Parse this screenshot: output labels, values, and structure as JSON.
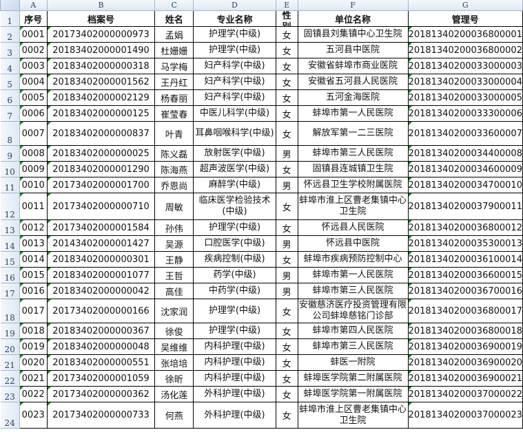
{
  "sheet": {
    "column_letters": [
      "A",
      "B",
      "C",
      "D",
      "E",
      "F",
      "G"
    ],
    "header": [
      "序号",
      "档案号",
      "姓名",
      "专业名称",
      "性别",
      "单位名称",
      "管理号"
    ],
    "row_numbers": [
      "1",
      "2",
      "3",
      "4",
      "5",
      "6",
      "7",
      "8",
      "9",
      "10",
      "11",
      "12",
      "13",
      "14",
      "15",
      "16",
      "17",
      "18",
      "19",
      "20",
      "21",
      "22",
      "23",
      "24"
    ],
    "rows": [
      [
        "0001",
        "20173402000000973",
        "孟娟",
        "护理学(中级)",
        "女",
        "固镇县刘集镇中心卫生院",
        "20181340200036800001"
      ],
      [
        "0002",
        "20183402000001490",
        "杜姗姗",
        "护理学(中级)",
        "女",
        "五河县中医院",
        "20181340200036800002"
      ],
      [
        "0003",
        "20183402000000318",
        "马学梅",
        "妇产科学(中级)",
        "女",
        "安徽省蚌埠市商业医院",
        "20181340200033000003"
      ],
      [
        "0004",
        "20183402000001562",
        "王丹红",
        "妇产科学(中级)",
        "女",
        "安徽省五河县人民医院",
        "20181340200033000004"
      ],
      [
        "0005",
        "20183402000002129",
        "杨春丽",
        "妇产科学(中级)",
        "女",
        "五河金海医院",
        "20181340200033000005"
      ],
      [
        "0006",
        "20183402000000125",
        "崔莹春",
        "中医儿科学(中级)",
        "女",
        "蚌埠市第一人民医院",
        "20181340200033300006"
      ],
      [
        "0007",
        "20183402000000837",
        "叶青",
        "耳鼻咽喉科学(中级)",
        "女",
        "解放军第一二三医院",
        "20181340200033600007"
      ],
      [
        "0008",
        "20183402000000025",
        "陈义磊",
        "放射医学(中级)",
        "男",
        "蚌埠市第三人民医院",
        "20181340200034400008"
      ],
      [
        "0009",
        "20183402000001290",
        "陈海燕",
        "超声波医学(中级)",
        "女",
        "固镇县连城镇卫生院",
        "20181340200034600009"
      ],
      [
        "0010",
        "20173402000001700",
        "乔恩尚",
        "麻醉学(中级)",
        "男",
        "怀远县卫生学校附属医院",
        "20181340200034700010"
      ],
      [
        "0011",
        "20173402000000710",
        "周敏",
        "临床医学检验技术(中级)",
        "女",
        "蚌埠市淮上区曹老集镇中心卫生院",
        "20181340200037900011"
      ],
      [
        "0012",
        "20173402000001584",
        "孙伟",
        "护理学(中级)",
        "女",
        "怀远县人民医院",
        "20181340200036800012"
      ],
      [
        "0013",
        "20143402000001427",
        "吴源",
        "口腔医学(中级)",
        "男",
        "怀远县中医院",
        "20181340200035300013"
      ],
      [
        "0014",
        "20183402000000301",
        "王静",
        "疾病控制(中级)",
        "女",
        "蚌埠市疾病预防控制中心",
        "20181340200036100014"
      ],
      [
        "0015",
        "20183402000001077",
        "王哲",
        "药学(中级)",
        "男",
        "蚌埠市第一人民医院",
        "20181340200036600015"
      ],
      [
        "0016",
        "20183402000000042",
        "高佳",
        "中药学(中级)",
        "男",
        "蚌埠市第三人民医院",
        "20181340200036700016"
      ],
      [
        "0017",
        "20173402000000166",
        "沈家润",
        "护理学(中级)",
        "女",
        "安徽慈济医疗投资管理有限公司蚌埠慈铭门诊部",
        "20181340200036800017"
      ],
      [
        "0018",
        "20183402000000367",
        "徐俊",
        "护理学(中级)",
        "女",
        "蚌埠市第四人民医院",
        "20181340200036800018"
      ],
      [
        "0019",
        "20183402000000048",
        "吴维维",
        "内科护理(中级)",
        "女",
        "蚌埠市第三人民医院",
        "20181340200036900019"
      ],
      [
        "0020",
        "20183402000000551",
        "张培培",
        "内科护理(中级)",
        "女",
        "蚌医一附院",
        "20181340200036900020"
      ],
      [
        "0021",
        "20173402000001059",
        "徐昕",
        "内科护理(中级)",
        "女",
        "蚌埠医学院第二附属医院",
        "20181340200036900021"
      ],
      [
        "0022",
        "20173402000000362",
        "汤化莲",
        "外科护理(中级)",
        "女",
        "蚌埠医学院第一附属医院",
        "20181340200037000022"
      ],
      [
        "0023",
        "20173402000000733",
        "何燕",
        "外科护理(中级)",
        "女",
        "蚌埠市淮上区曹老集镇中心卫生院",
        "20181340200037000023"
      ]
    ]
  }
}
